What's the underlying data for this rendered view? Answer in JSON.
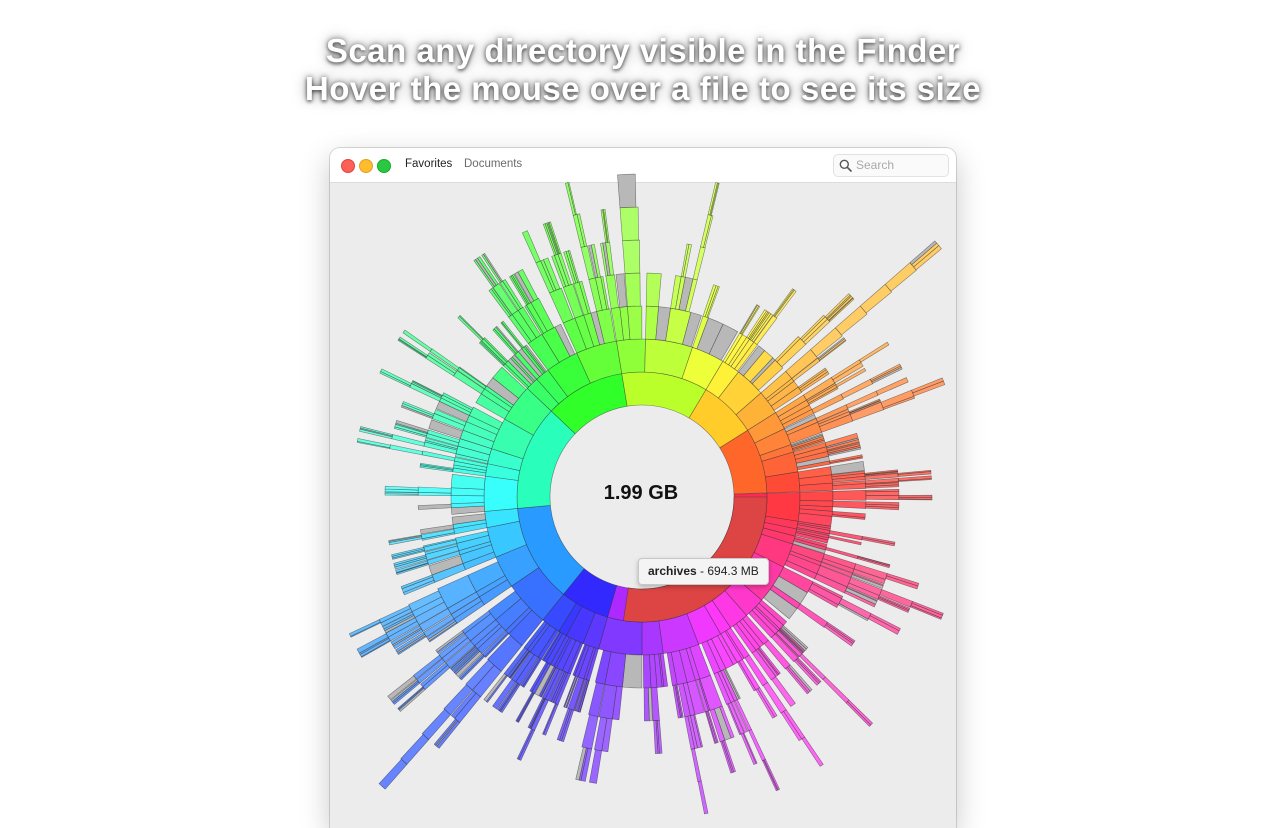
{
  "caption": {
    "line1": "Scan any directory visible in the Finder",
    "line2": "Hover the mouse over a file to see its size"
  },
  "window": {
    "breadcrumb": [
      "Favorites",
      "Documents"
    ],
    "search_placeholder": "Search"
  },
  "sunburst": {
    "total_label": "1.99 GB",
    "hovered_name": "archives",
    "hovered_size": "694.3 MB",
    "colors": {
      "hover_highlight": "#dd4444",
      "unknown_segment": "#b8b8b8",
      "background": "#ececec"
    }
  }
}
